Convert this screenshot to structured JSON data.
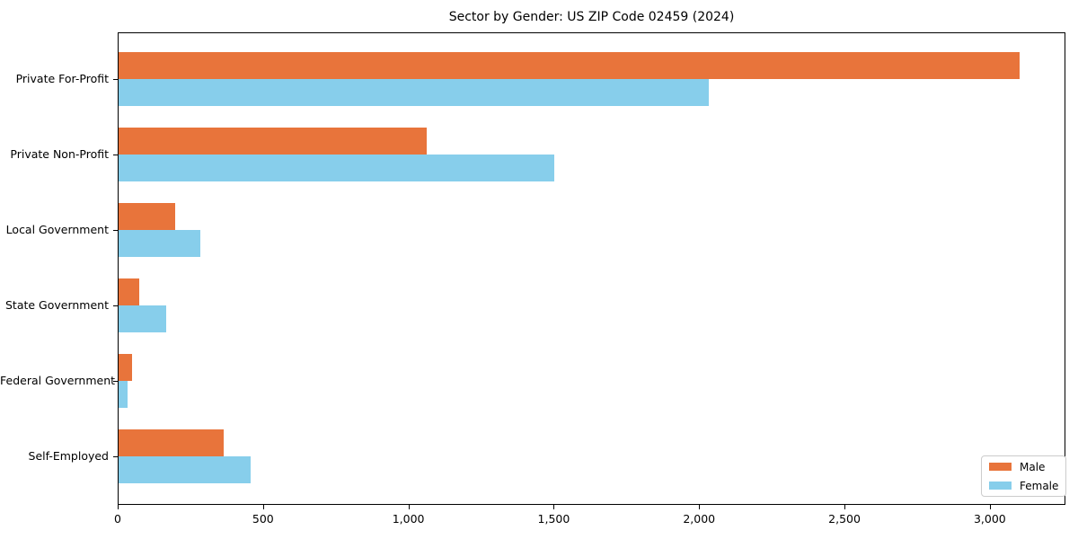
{
  "title": "Sector by Gender: US ZIP Code 02459 (2024)",
  "chart_data": {
    "type": "bar",
    "orientation": "horizontal",
    "title": "Sector by Gender: US ZIP Code 02459 (2024)",
    "categories": [
      "Private For-Profit",
      "Private Non-Profit",
      "Local Government",
      "State Government",
      "Federal Government",
      "Self-Employed"
    ],
    "series": [
      {
        "name": "Male",
        "color": "#e8743b",
        "values": [
          3100,
          1060,
          195,
          70,
          45,
          360
        ]
      },
      {
        "name": "Female",
        "color": "#87ceeb",
        "values": [
          2030,
          1500,
          280,
          165,
          30,
          455
        ]
      }
    ],
    "xlabel": "",
    "ylabel": "",
    "xlim": [
      0,
      3260
    ],
    "xticks": [
      0,
      500,
      1000,
      1500,
      2000,
      2500,
      3000
    ],
    "xtick_labels": [
      "0",
      "500",
      "1,000",
      "1,500",
      "2,000",
      "2,500",
      "3,000"
    ],
    "grid": false,
    "legend": {
      "position": "lower-right",
      "entries": [
        "Male",
        "Female"
      ]
    },
    "colors": {
      "male": "#e8743b",
      "female": "#87ceeb",
      "spine": "#000000",
      "legend_border": "#cccccc"
    }
  }
}
